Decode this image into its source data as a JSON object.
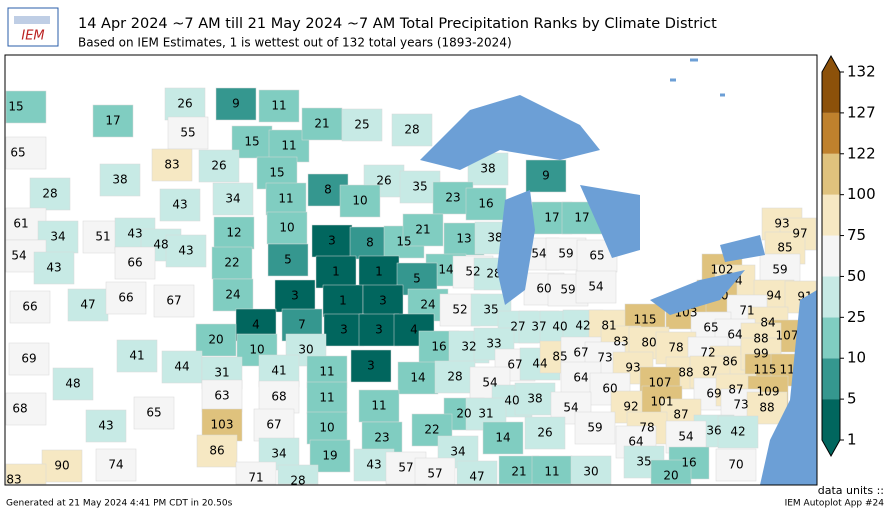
{
  "logo": "IEM",
  "header": {
    "title": "14 Apr 2024 ~7 AM till 21 May 2024 ~7 AM Total Precipitation Ranks by Climate District",
    "subtitle": "Based on IEM Estimates, 1 is wettest out of 132 total years (1893-2024)"
  },
  "colorbar": {
    "ticks": [
      1,
      5,
      10,
      25,
      50,
      75,
      100,
      122,
      127,
      132
    ],
    "colors": [
      "#01665e",
      "#35978f",
      "#80cdc1",
      "#c7eae5",
      "#f5f5f5",
      "#f6e8c3",
      "#dfc27d",
      "#bf812d",
      "#8c510a"
    ],
    "units_label": "data units ::"
  },
  "districts": [
    15,
    17,
    65,
    38,
    28,
    26,
    9,
    11,
    55,
    15,
    11,
    21,
    25,
    28,
    83,
    26,
    15,
    8,
    26,
    35,
    38,
    9,
    23,
    10,
    16,
    43,
    34,
    11,
    17,
    17,
    61,
    34,
    51,
    43,
    48,
    43,
    12,
    10,
    3,
    8,
    15,
    21,
    13,
    38,
    54,
    43,
    66,
    22,
    5,
    14,
    52,
    28,
    54,
    59,
    65,
    93,
    97,
    85,
    102,
    94,
    59,
    1,
    1,
    5,
    24,
    3,
    1,
    3,
    24,
    52,
    35,
    60,
    59,
    54,
    100,
    94,
    91,
    66,
    47,
    66,
    67,
    4,
    7,
    3,
    3,
    4,
    27,
    37,
    40,
    42,
    81,
    115,
    103,
    71,
    84,
    20,
    10,
    30,
    16,
    32,
    33,
    65,
    64,
    107,
    83,
    80,
    78,
    69,
    41,
    44,
    31,
    41,
    11,
    3,
    14,
    67,
    44,
    85,
    67,
    73,
    72,
    86,
    88,
    99,
    48,
    28,
    54,
    64,
    93,
    88,
    87,
    115,
    119,
    63,
    68,
    11,
    40,
    38,
    60,
    107,
    69,
    87,
    109,
    68,
    65,
    11,
    54,
    92,
    101,
    87,
    73,
    88,
    43,
    103,
    67,
    10,
    20,
    31,
    59,
    78,
    36,
    42,
    23,
    22,
    14,
    26,
    64,
    54,
    86,
    34,
    19,
    34,
    90,
    74,
    43,
    57,
    57,
    35,
    16,
    70,
    71,
    28,
    83,
    47,
    21,
    11,
    30,
    20
  ],
  "footer": {
    "generated": "Generated at 21 May 2024 4:41 PM CDT in 20.50s",
    "app": "IEM Autoplot App #24"
  }
}
